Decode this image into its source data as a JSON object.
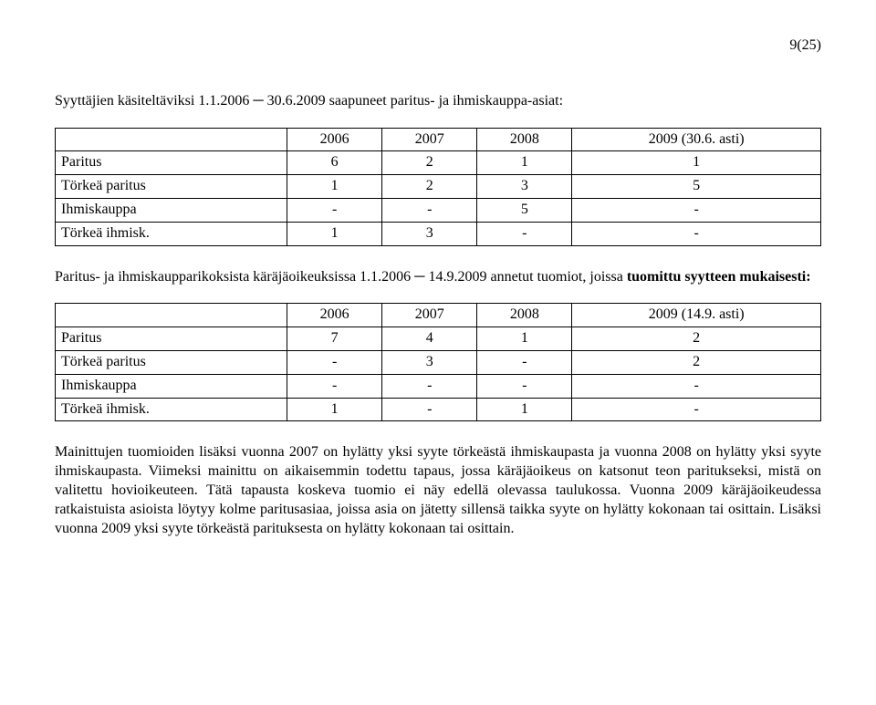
{
  "page_number": "9(25)",
  "intro1": "Syyttäjien käsiteltäviksi 1.1.2006 ─ 30.6.2009 saapuneet paritus- ja ihmiskauppa-asiat:",
  "table1": {
    "headers": [
      "",
      "2006",
      "2007",
      "2008",
      "2009 (30.6. asti)"
    ],
    "rows": [
      [
        "Paritus",
        "6",
        "2",
        "1",
        "1"
      ],
      [
        "Törkeä paritus",
        "1",
        "2",
        "3",
        "5"
      ],
      [
        "Ihmiskauppa",
        "-",
        "-",
        "5",
        "-"
      ],
      [
        "Törkeä ihmisk.",
        "1",
        "3",
        "-",
        "-"
      ]
    ]
  },
  "intro2_a": "Paritus- ja ihmiskaupparikoksista käräjäoikeuksissa 1.1.2006 ─ 14.9.2009 annetut tuomiot, joissa ",
  "intro2_b": "tuomittu syytteen mukaisesti:",
  "table2": {
    "headers": [
      "",
      "2006",
      "2007",
      "2008",
      "2009 (14.9. asti)"
    ],
    "rows": [
      [
        "Paritus",
        "7",
        "4",
        "1",
        "2"
      ],
      [
        "Törkeä paritus",
        "-",
        "3",
        "-",
        "2"
      ],
      [
        "Ihmiskauppa",
        "-",
        "-",
        "-",
        "-"
      ],
      [
        "Törkeä ihmisk.",
        "1",
        "-",
        "1",
        "-"
      ]
    ]
  },
  "bodytext": "Mainittujen tuomioiden lisäksi vuonna 2007 on hylätty yksi syyte törkeästä ihmiskaupasta ja vuonna 2008 on hylätty yksi syyte ihmiskaupasta. Viimeksi mainittu on aikaisemmin todettu tapaus, jossa käräjäoikeus on katsonut teon paritukseksi, mistä on valitettu hovioikeuteen. Tätä tapausta koskeva tuomio ei näy edellä olevassa taulukossa. Vuonna 2009 käräjäoikeudessa ratkaistuista asioista löytyy kolme paritusasiaa, joissa asia on jätetty sillensä taikka syyte on hylätty kokonaan tai osittain. Lisäksi vuonna 2009 yksi syyte törkeästä parituksesta on hylätty kokonaan tai osittain."
}
